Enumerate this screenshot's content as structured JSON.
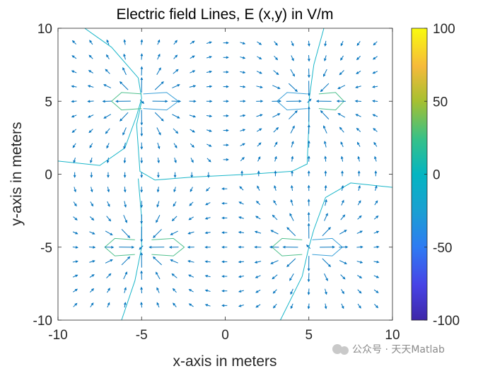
{
  "chart_data": {
    "type": "vector_field",
    "title": "Electric field Lines, E (x,y) in V/m",
    "xlabel": "x-axis in meters",
    "ylabel": "y-axis in meters",
    "xlim": [
      -10,
      10
    ],
    "ylim": [
      -10,
      10
    ],
    "x_ticks": [
      "-10",
      "-5",
      "0",
      "5",
      "10"
    ],
    "y_ticks": [
      "10",
      "5",
      "0",
      "-5",
      "-10"
    ],
    "grid": false,
    "charges": [
      {
        "x": -5,
        "y": 5,
        "sign": "positive"
      },
      {
        "x": 5,
        "y": 5,
        "sign": "negative"
      },
      {
        "x": -5,
        "y": -5,
        "sign": "negative"
      },
      {
        "x": 5,
        "y": -5,
        "sign": "positive"
      }
    ],
    "colorbar": {
      "range": [
        -100,
        100
      ],
      "ticks": [
        "100",
        "50",
        "0",
        "-50",
        "-100"
      ],
      "colormap": "parula"
    },
    "colors": {
      "arrows": "#0072bd",
      "contour_zero": "#19b6c9",
      "contour_pos": "#4fc08d",
      "contour_neg": "#3aa0d8"
    }
  },
  "watermark": "公众号 · 天天Matlab"
}
